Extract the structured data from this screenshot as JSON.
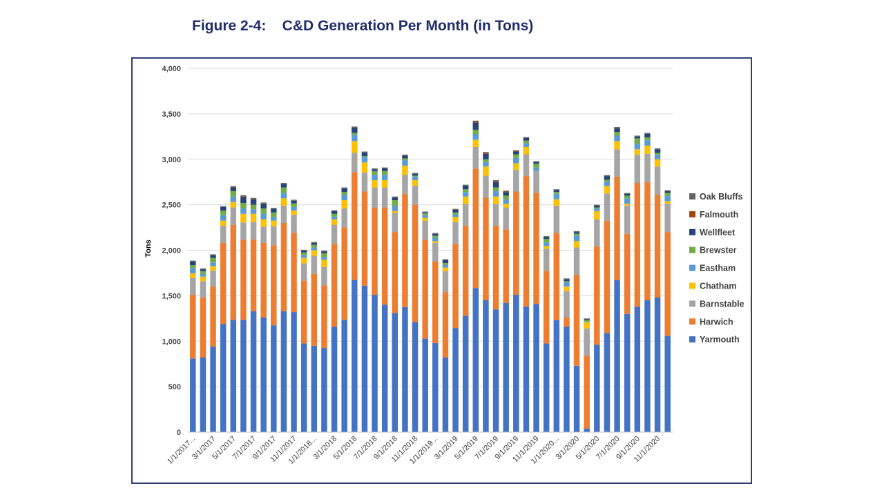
{
  "page": {
    "title": "Figure 2-4:    C&D Generation Per Month (in Tons)"
  },
  "chart_data": {
    "type": "bar",
    "stacked": true,
    "title": "Figure 2-4:    C&D Generation Per Month (in Tons)",
    "xlabel": "",
    "ylabel": "Tons",
    "ylim": [
      0,
      4000
    ],
    "yticks": [
      0,
      500,
      1000,
      1500,
      2000,
      2500,
      3000,
      3500,
      4000
    ],
    "ytick_labels": [
      "0",
      "500",
      "1,000",
      "1,500",
      "2,000",
      "2,500",
      "3,000",
      "3,500",
      "4,000"
    ],
    "grid": true,
    "legend_position": "right",
    "categories": [
      "1/1/2017",
      "2/1/2017",
      "3/1/2017",
      "4/1/2017",
      "5/1/2017",
      "6/1/2017",
      "7/1/2017",
      "8/1/2017",
      "9/1/2017",
      "10/1/2017",
      "11/1/2017",
      "12/1/2017",
      "1/1/2018",
      "2/1/2018",
      "3/1/2018",
      "4/1/2018",
      "5/1/2018",
      "6/1/2018",
      "7/1/2018",
      "8/1/2018",
      "9/1/2018",
      "10/1/2018",
      "11/1/2018",
      "12/1/2018",
      "1/1/2019",
      "2/1/2019",
      "3/1/2019",
      "4/1/2019",
      "5/1/2019",
      "6/1/2019",
      "7/1/2019",
      "8/1/2019",
      "9/1/2019",
      "10/1/2019",
      "11/1/2019",
      "12/1/2019",
      "1/1/2020",
      "2/1/2020",
      "3/1/2020",
      "4/1/2020",
      "5/1/2020",
      "6/1/2020",
      "7/1/2020",
      "8/1/2020",
      "9/1/2020",
      "10/1/2020",
      "11/1/2020",
      "12/1/2020"
    ],
    "tick_labels": [
      {
        "index": 0,
        "text": "1/1/2017..."
      },
      {
        "index": 2,
        "text": "3/1/2017"
      },
      {
        "index": 4,
        "text": "5/1/2017"
      },
      {
        "index": 6,
        "text": "7/1/2017"
      },
      {
        "index": 8,
        "text": "9/1/2017"
      },
      {
        "index": 10,
        "text": "11/1/2017"
      },
      {
        "index": 12,
        "text": "1/1/2018..."
      },
      {
        "index": 14,
        "text": "3/1/2018"
      },
      {
        "index": 16,
        "text": "5/1/2018"
      },
      {
        "index": 18,
        "text": "7/1/2018"
      },
      {
        "index": 20,
        "text": "9/1/2018"
      },
      {
        "index": 22,
        "text": "11/1/2018"
      },
      {
        "index": 24,
        "text": "1/1/2019..."
      },
      {
        "index": 26,
        "text": "3/1/2019"
      },
      {
        "index": 28,
        "text": "5/1/2019"
      },
      {
        "index": 30,
        "text": "7/1/2019"
      },
      {
        "index": 32,
        "text": "9/1/2019"
      },
      {
        "index": 34,
        "text": "11/1/2019"
      },
      {
        "index": 36,
        "text": "1/1/2020..."
      },
      {
        "index": 38,
        "text": "3/1/2020"
      },
      {
        "index": 40,
        "text": "5/1/2020"
      },
      {
        "index": 42,
        "text": "7/1/2020"
      },
      {
        "index": 44,
        "text": "9/1/2020"
      },
      {
        "index": 46,
        "text": "11/1/2020"
      }
    ],
    "series": [
      {
        "name": "Yarmouth",
        "color": "#4472c4",
        "values": [
          810,
          820,
          940,
          1190,
          1235,
          1235,
          1330,
          1260,
          1175,
          1330,
          1320,
          975,
          950,
          925,
          1160,
          1235,
          1675,
          1610,
          1510,
          1400,
          1310,
          1375,
          1210,
          1030,
          980,
          820,
          1145,
          1280,
          1585,
          1450,
          1350,
          1420,
          1510,
          1380,
          1410,
          975,
          1230,
          1160,
          730,
          40,
          960,
          1090,
          1670,
          1300,
          1380,
          1450,
          1480,
          1060
        ]
      },
      {
        "name": "Harwich",
        "color": "#ed7d31",
        "values": [
          700,
          660,
          660,
          890,
          1045,
          880,
          790,
          820,
          880,
          970,
          870,
          690,
          790,
          690,
          910,
          1015,
          1185,
          1035,
          960,
          1070,
          890,
          1245,
          1290,
          1085,
          900,
          720,
          925,
          990,
          1310,
          1130,
          920,
          810,
          1135,
          1435,
          1220,
          800,
          960,
          100,
          1000,
          800,
          1080,
          1235,
          1140,
          880,
          1360,
          1300,
          1130,
          1140
        ]
      },
      {
        "name": "Barnstable",
        "color": "#a5a5a5",
        "values": [
          185,
          180,
          175,
          190,
          190,
          190,
          190,
          180,
          210,
          190,
          200,
          190,
          200,
          200,
          210,
          210,
          210,
          210,
          220,
          220,
          210,
          210,
          210,
          210,
          200,
          230,
          240,
          240,
          240,
          240,
          240,
          240,
          240,
          240,
          240,
          240,
          300,
          290,
          300,
          300,
          300,
          300,
          300,
          310,
          310,
          310,
          310,
          310
        ]
      },
      {
        "name": "Chatham",
        "color": "#ffc000",
        "values": [
          50,
          50,
          50,
          55,
          60,
          95,
          90,
          80,
          60,
          80,
          45,
          60,
          60,
          80,
          60,
          90,
          130,
          110,
          80,
          80,
          20,
          100,
          60,
          30,
          20,
          40,
          55,
          80,
          80,
          100,
          80,
          40,
          70,
          80,
          0,
          30,
          70,
          50,
          70,
          70,
          90,
          80,
          90,
          20,
          60,
          90,
          80,
          30
        ]
      },
      {
        "name": "Eastham",
        "color": "#5b9bd5",
        "values": [
          60,
          30,
          40,
          60,
          60,
          60,
          50,
          60,
          40,
          60,
          40,
          30,
          30,
          30,
          30,
          60,
          70,
          60,
          60,
          60,
          60,
          60,
          40,
          30,
          40,
          30,
          30,
          50,
          60,
          50,
          60,
          50,
          60,
          40,
          40,
          40,
          60,
          50,
          60,
          10,
          30,
          50,
          60,
          60,
          60,
          60,
          50,
          60
        ]
      },
      {
        "name": "Brewster",
        "color": "#70ad47",
        "values": [
          30,
          30,
          50,
          50,
          60,
          60,
          50,
          60,
          50,
          60,
          40,
          30,
          30,
          40,
          30,
          30,
          20,
          10,
          40,
          40,
          60,
          20,
          10,
          20,
          20,
          20,
          20,
          30,
          50,
          30,
          40,
          40,
          40,
          30,
          40,
          40,
          20,
          10,
          20,
          10,
          10,
          20,
          40,
          30,
          60,
          30,
          20,
          30
        ]
      },
      {
        "name": "Wellfleet",
        "color": "#264478",
        "values": [
          40,
          20,
          30,
          40,
          40,
          70,
          60,
          50,
          40,
          40,
          30,
          20,
          20,
          20,
          30,
          40,
          60,
          40,
          20,
          30,
          30,
          30,
          20,
          10,
          20,
          30,
          30,
          40,
          80,
          60,
          60,
          40,
          30,
          30,
          20,
          20,
          20,
          20,
          20,
          10,
          20,
          40,
          40,
          20,
          20,
          40,
          40,
          20
        ]
      },
      {
        "name": "Falmouth",
        "color": "#9e480e",
        "values": [
          0,
          0,
          0,
          0,
          5,
          5,
          5,
          5,
          0,
          0,
          0,
          0,
          0,
          0,
          0,
          0,
          0,
          0,
          0,
          0,
          0,
          0,
          0,
          0,
          0,
          0,
          0,
          0,
          10,
          10,
          10,
          5,
          5,
          0,
          0,
          0,
          0,
          0,
          0,
          0,
          0,
          0,
          5,
          0,
          0,
          0,
          0,
          0
        ]
      },
      {
        "name": "Oak Bluffs",
        "color": "#636363",
        "values": [
          10,
          10,
          10,
          10,
          10,
          10,
          10,
          10,
          10,
          10,
          10,
          10,
          10,
          10,
          10,
          10,
          10,
          10,
          10,
          10,
          10,
          10,
          10,
          10,
          10,
          10,
          10,
          10,
          10,
          10,
          10,
          10,
          10,
          10,
          10,
          10,
          10,
          10,
          10,
          10,
          10,
          10,
          10,
          10,
          10,
          10,
          10,
          10
        ]
      }
    ]
  }
}
